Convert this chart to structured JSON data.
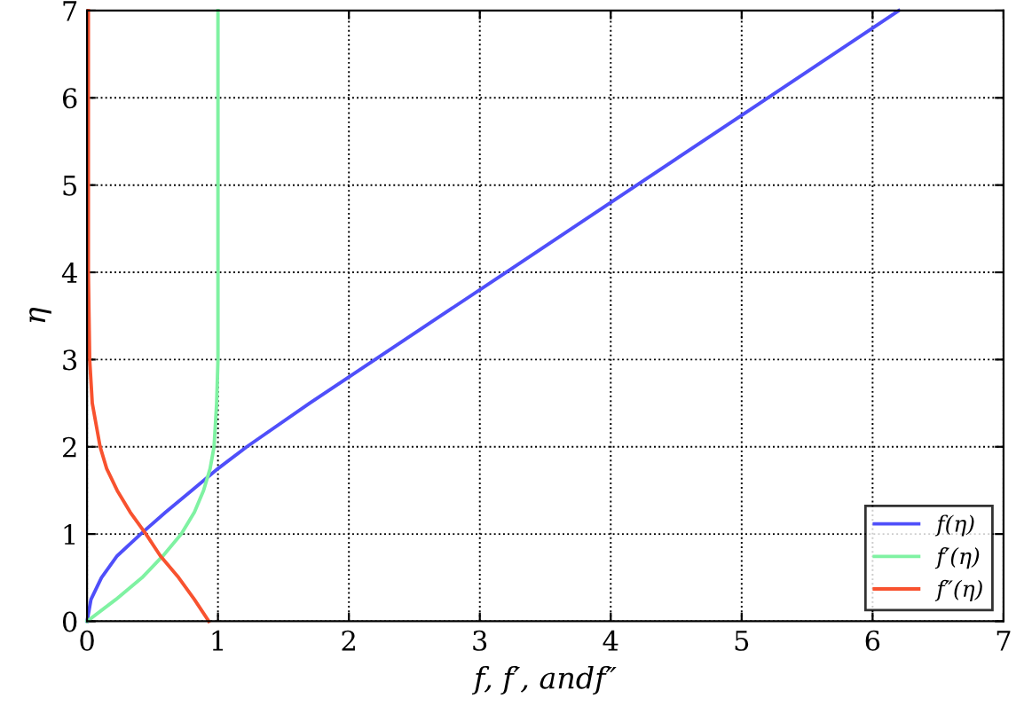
{
  "chart_data": {
    "type": "line",
    "xlabel": "f, f′, andf″",
    "ylabel": "η",
    "xlim": [
      0,
      7
    ],
    "ylim": [
      0,
      7
    ],
    "xticks": [
      0,
      1,
      2,
      3,
      4,
      5,
      6,
      7
    ],
    "yticks": [
      0,
      1,
      2,
      3,
      4,
      5,
      6,
      7
    ],
    "grid": true,
    "legend": "bottom right",
    "line_style": "solid",
    "series": [
      {
        "name": "f(η)",
        "color": "#4f4ffa",
        "x": [
          0,
          0.03,
          0.11,
          0.23,
          0.41,
          0.6,
          0.8,
          1.0,
          1.22,
          1.7,
          2.2,
          2.7,
          3.2,
          4.2,
          5.2,
          6.2
        ],
        "values": [
          0,
          0.25,
          0.5,
          0.75,
          1,
          1.25,
          1.5,
          1.75,
          2,
          2.5,
          3,
          3.5,
          4,
          5,
          6,
          7
        ]
      },
      {
        "name": "f′(η)",
        "color": "#7ff2a2",
        "x": [
          0,
          0.22,
          0.42,
          0.58,
          0.72,
          0.82,
          0.89,
          0.94,
          0.97,
          0.99,
          1,
          1,
          1,
          1,
          1,
          1
        ],
        "values": [
          0,
          0.25,
          0.5,
          0.75,
          1,
          1.25,
          1.5,
          1.75,
          2,
          2.5,
          3,
          3.5,
          4,
          5,
          6,
          7
        ]
      },
      {
        "name": "f″(η)",
        "color": "#f8522f",
        "x": [
          0.93,
          0.82,
          0.7,
          0.56,
          0.45,
          0.33,
          0.23,
          0.15,
          0.1,
          0.04,
          0.02,
          0.015,
          0.01,
          0.01,
          0.01,
          0.01
        ],
        "values": [
          0,
          0.25,
          0.5,
          0.75,
          1,
          1.25,
          1.5,
          1.75,
          2,
          2.5,
          3,
          3.5,
          4,
          5,
          6,
          7
        ]
      }
    ]
  }
}
